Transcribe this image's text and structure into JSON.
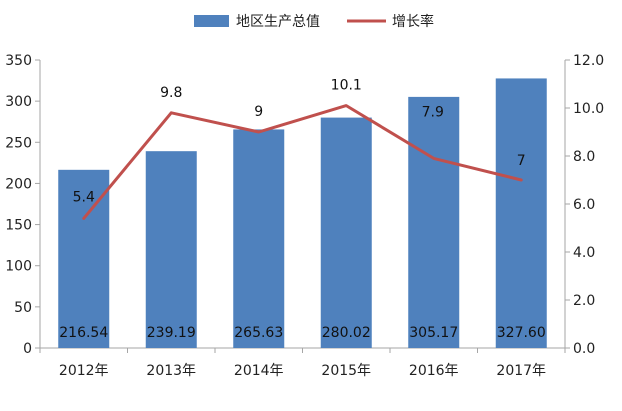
{
  "chart_data": {
    "type": "bar",
    "categories": [
      "2012年",
      "2013年",
      "2014年",
      "2015年",
      "2016年",
      "2017年"
    ],
    "series": [
      {
        "name": "地区生产总值",
        "type": "bar",
        "axis": "left",
        "color": "#4F81BD",
        "values": [
          216.54,
          239.19,
          265.63,
          280.02,
          305.17,
          327.6
        ],
        "value_labels": [
          "216.54",
          "239.19",
          "265.63",
          "280.02",
          "305.17",
          "327.60"
        ]
      },
      {
        "name": "增长率",
        "type": "line",
        "axis": "right",
        "color": "#C0504D",
        "values": [
          5.4,
          9.8,
          9,
          10.1,
          7.9,
          7
        ],
        "value_labels": [
          "5.4",
          "9.8",
          "9",
          "10.1",
          "7.9",
          "7"
        ]
      }
    ],
    "left_axis": {
      "min": 0,
      "max": 350,
      "ticks": [
        0,
        50,
        100,
        150,
        200,
        250,
        300,
        350
      ],
      "tick_labels": [
        "0",
        "50",
        "100",
        "150",
        "200",
        "250",
        "300",
        "350"
      ]
    },
    "right_axis": {
      "min": 0,
      "max": 12,
      "ticks": [
        0,
        2,
        4,
        6,
        8,
        10,
        12
      ],
      "tick_labels": [
        "0.0",
        "2.0",
        "4.0",
        "6.0",
        "8.0",
        "10.0",
        "12.0"
      ]
    },
    "legend": {
      "position": "top-center"
    },
    "grid": false
  }
}
